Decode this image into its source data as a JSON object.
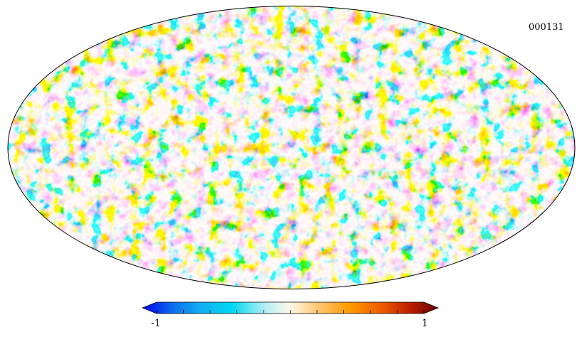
{
  "map": {
    "id_label": "000131",
    "projection": "mollweide",
    "colormap_stops": [
      "#0000ee",
      "#0a6cf0",
      "#14b0f2",
      "#00d8f0",
      "#b8f0f4",
      "#fff8e8",
      "#ffcc80",
      "#ff9c00",
      "#f06000",
      "#c02000",
      "#6a0000"
    ]
  },
  "colorbar": {
    "min_label": "-1",
    "max_label": "1",
    "min_value": -1,
    "max_value": 1,
    "extend": "both"
  }
}
